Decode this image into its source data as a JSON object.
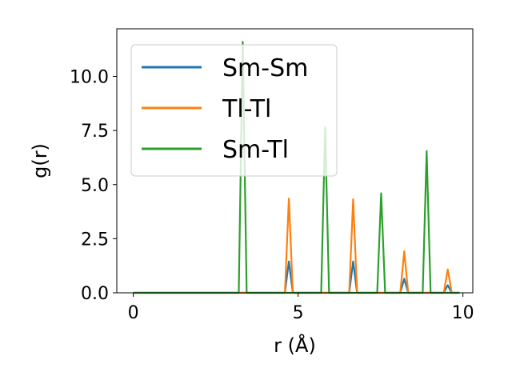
{
  "chart_data": {
    "type": "line",
    "xlabel": "r (Å)",
    "ylabel": "g(r)",
    "xlim": [
      -0.5,
      10.3
    ],
    "ylim": [
      0,
      12.2
    ],
    "xticks": [
      0,
      5,
      10
    ],
    "xtick_labels": [
      "0",
      "5",
      "10"
    ],
    "yticks": [
      0,
      2.5,
      5,
      7.5,
      10
    ],
    "ytick_labels": [
      "0.0",
      "2.5",
      "5.0",
      "7.5",
      "10.0"
    ],
    "grid": false,
    "legend_position": "top-left",
    "series": [
      {
        "name": "Sm-Sm",
        "color": "#1f77b4",
        "x": [
          0,
          4.6,
          4.72,
          4.84,
          6.55,
          6.67,
          6.79,
          8.1,
          8.22,
          8.34,
          9.42,
          9.54,
          9.66,
          9.9
        ],
        "y": [
          0,
          0,
          1.45,
          0,
          0,
          1.45,
          0,
          0,
          0.65,
          0,
          0,
          0.35,
          0,
          0
        ]
      },
      {
        "name": "Tl-Tl",
        "color": "#ff7f0e",
        "x": [
          0,
          4.6,
          4.72,
          4.84,
          6.55,
          6.67,
          6.79,
          8.1,
          8.22,
          8.34,
          9.42,
          9.54,
          9.66,
          9.9
        ],
        "y": [
          0,
          0,
          4.35,
          0,
          0,
          4.32,
          0,
          0,
          1.92,
          0,
          0,
          1.08,
          0,
          0
        ]
      },
      {
        "name": "Sm-Tl",
        "color": "#2ca02c",
        "x": [
          0,
          3.2,
          3.32,
          3.44,
          5.7,
          5.82,
          5.94,
          7.4,
          7.52,
          7.64,
          8.78,
          8.9,
          9.02,
          9.9
        ],
        "y": [
          0,
          0,
          11.6,
          0,
          0,
          7.65,
          0,
          0,
          4.6,
          0,
          0,
          6.55,
          0,
          0
        ]
      }
    ]
  }
}
